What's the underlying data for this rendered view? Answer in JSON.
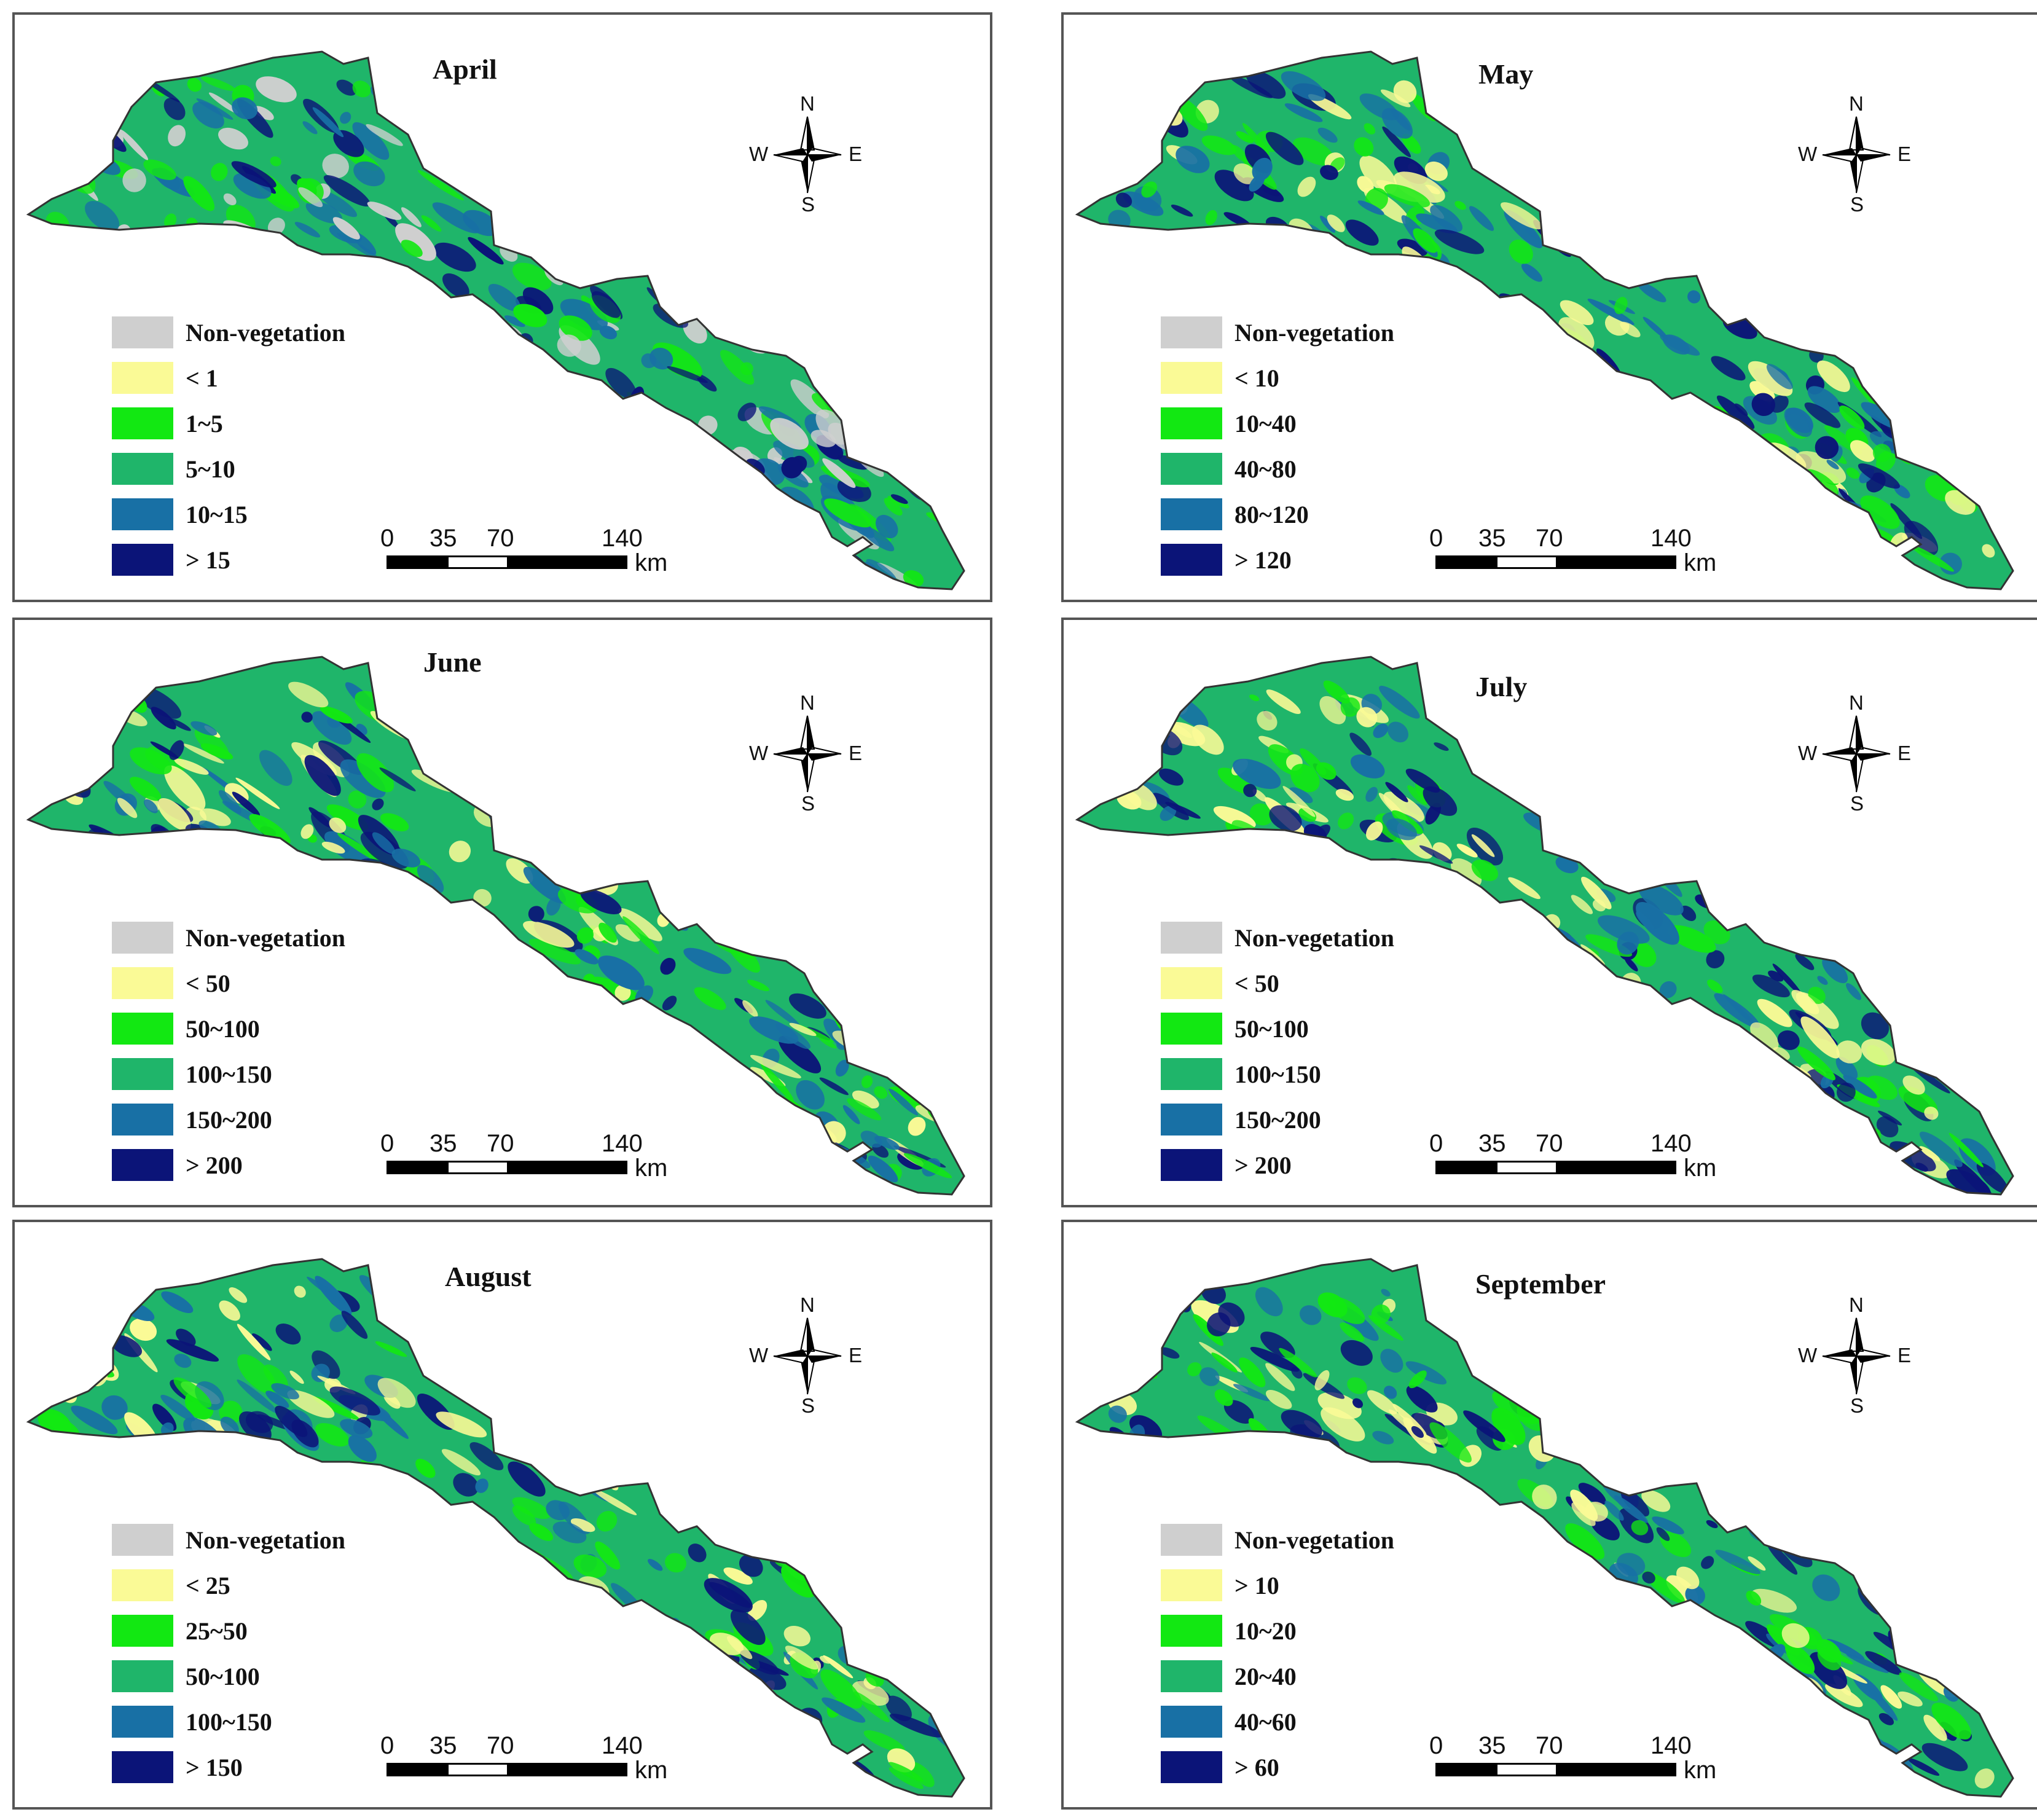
{
  "panels": [
    {
      "title": "April",
      "legend": [
        {
          "label": "Non-vegetation",
          "color": "#cfcfcf"
        },
        {
          "label": "< 1",
          "color": "#fafa96"
        },
        {
          "label": "1~5",
          "color": "#12e812"
        },
        {
          "label": "5~10",
          "color": "#1fb56a"
        },
        {
          "label": "10~15",
          "color": "#1870a5"
        },
        {
          "label": "> 15",
          "color": "#0b1478"
        }
      ],
      "fill_colors": [
        "#1fb56a",
        "#12e812",
        "#cfcfcf",
        "#1870a5",
        "#0b1478"
      ]
    },
    {
      "title": "May",
      "legend": [
        {
          "label": "Non-vegetation",
          "color": "#cfcfcf"
        },
        {
          "label": "< 10",
          "color": "#fafa96"
        },
        {
          "label": "10~40",
          "color": "#12e812"
        },
        {
          "label": "40~80",
          "color": "#1fb56a"
        },
        {
          "label": "80~120",
          "color": "#1870a5"
        },
        {
          "label": "> 120",
          "color": "#0b1478"
        }
      ],
      "fill_colors": [
        "#1fb56a",
        "#12e812",
        "#fafa96",
        "#1870a5",
        "#0b1478"
      ]
    },
    {
      "title": "June",
      "legend": [
        {
          "label": "Non-vegetation",
          "color": "#cfcfcf"
        },
        {
          "label": "< 50",
          "color": "#fafa96"
        },
        {
          "label": "50~100",
          "color": "#12e812"
        },
        {
          "label": "100~150",
          "color": "#1fb56a"
        },
        {
          "label": "150~200",
          "color": "#1870a5"
        },
        {
          "label": "> 200",
          "color": "#0b1478"
        }
      ],
      "fill_colors": [
        "#1fb56a",
        "#12e812",
        "#fafa96",
        "#1870a5",
        "#0b1478"
      ]
    },
    {
      "title": "July",
      "legend": [
        {
          "label": "Non-vegetation",
          "color": "#cfcfcf"
        },
        {
          "label": "< 50",
          "color": "#fafa96"
        },
        {
          "label": "50~100",
          "color": "#12e812"
        },
        {
          "label": "100~150",
          "color": "#1fb56a"
        },
        {
          "label": "150~200",
          "color": "#1870a5"
        },
        {
          "label": "> 200",
          "color": "#0b1478"
        }
      ],
      "fill_colors": [
        "#1fb56a",
        "#12e812",
        "#fafa96",
        "#1870a5",
        "#0b1478"
      ]
    },
    {
      "title": "August",
      "legend": [
        {
          "label": "Non-vegetation",
          "color": "#cfcfcf"
        },
        {
          "label": "< 25",
          "color": "#fafa96"
        },
        {
          "label": "25~50",
          "color": "#12e812"
        },
        {
          "label": "50~100",
          "color": "#1fb56a"
        },
        {
          "label": "100~150",
          "color": "#1870a5"
        },
        {
          "label": "> 150",
          "color": "#0b1478"
        }
      ],
      "fill_colors": [
        "#1fb56a",
        "#1870a5",
        "#fafa96",
        "#12e812",
        "#0b1478"
      ]
    },
    {
      "title": "September",
      "legend": [
        {
          "label": "Non-vegetation",
          "color": "#cfcfcf"
        },
        {
          "label": "> 10",
          "color": "#fafa96"
        },
        {
          "label": "10~20",
          "color": "#12e812"
        },
        {
          "label": "20~40",
          "color": "#1fb56a"
        },
        {
          "label": "40~60",
          "color": "#1870a5"
        },
        {
          "label": "> 60",
          "color": "#0b1478"
        }
      ],
      "fill_colors": [
        "#1fb56a",
        "#1870a5",
        "#fafa96",
        "#12e812",
        "#0b1478"
      ]
    }
  ],
  "compass": {
    "n": "N",
    "s": "S",
    "w": "W",
    "e": "E"
  },
  "scale_bar": {
    "ticks": [
      "0",
      "35",
      "70",
      "140"
    ],
    "unit": "km"
  }
}
